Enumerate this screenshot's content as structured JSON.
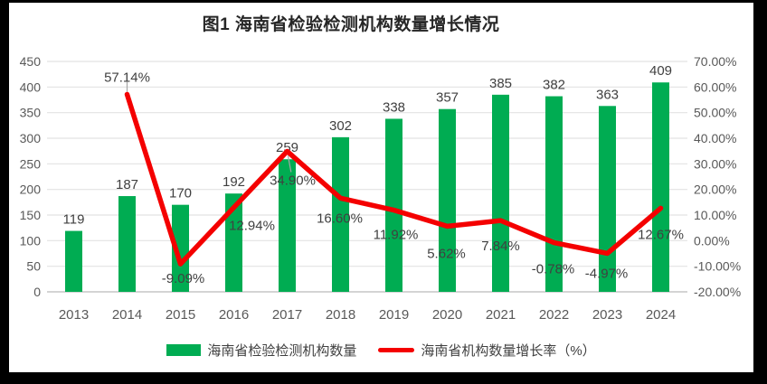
{
  "title": "图1 海南省检验检测机构数量增长情况",
  "colors": {
    "bar": "#00AC52",
    "line": "#F40000",
    "grid": "#E2E2E2",
    "axis_line": "#C6C6C6",
    "axis_text": "#595959",
    "label_text": "#404040",
    "leader": "#A6A6A6",
    "frame": "#000000",
    "background": "#FFFFFF"
  },
  "legend": {
    "items": [
      {
        "label": "海南省检验检测机构数量",
        "swatch": "bar"
      },
      {
        "label": "海南省机构数量增长率（%）",
        "swatch": "line"
      }
    ]
  },
  "chart_data": {
    "type": "bar",
    "combo": "bar+line",
    "title": "图1 海南省检验检测机构数量增长情况",
    "categories": [
      "2013",
      "2014",
      "2015",
      "2016",
      "2017",
      "2018",
      "2019",
      "2020",
      "2021",
      "2022",
      "2023",
      "2024"
    ],
    "series": [
      {
        "name": "海南省检验检测机构数量",
        "type": "bar",
        "axis": "left",
        "color": "#00AC52",
        "values": [
          119,
          187,
          170,
          192,
          259,
          302,
          338,
          357,
          385,
          382,
          363,
          409
        ],
        "labels": [
          "119",
          "187",
          "170",
          "192",
          "259",
          "302",
          "338",
          "357",
          "385",
          "382",
          "363",
          "409"
        ]
      },
      {
        "name": "海南省机构数量增长率（%）",
        "type": "line",
        "axis": "right",
        "color": "#F40000",
        "start_index": 1,
        "values": [
          57.14,
          -9.09,
          12.94,
          34.9,
          16.6,
          11.92,
          5.62,
          7.84,
          -0.78,
          -4.97,
          12.67
        ],
        "labels": [
          "57.14%",
          "-9.09%",
          "12.94%",
          "34.90%",
          "16.60%",
          "11.92%",
          "5.62%",
          "7.84%",
          "-0.78%",
          "-4.97%",
          "12.67%"
        ],
        "label_offsets": [
          [
            0,
            -19
          ],
          [
            3,
            16
          ],
          [
            20,
            20
          ],
          [
            6,
            32
          ],
          [
            -1,
            22
          ],
          [
            2,
            27
          ],
          [
            -1,
            30
          ],
          [
            0,
            28
          ],
          [
            -1,
            29
          ],
          [
            -1,
            22
          ],
          [
            0,
            29
          ]
        ],
        "leader_indexes": [
          0,
          3
        ]
      }
    ],
    "left_axis": {
      "min": 0,
      "max": 450,
      "step": 50,
      "ticks": [
        "0",
        "50",
        "100",
        "150",
        "200",
        "250",
        "300",
        "350",
        "400",
        "450"
      ]
    },
    "right_axis": {
      "min": -20,
      "max": 70,
      "step": 10,
      "ticks": [
        "-20.00%",
        "-10.00%",
        "0.00%",
        "10.00%",
        "20.00%",
        "30.00%",
        "40.00%",
        "50.00%",
        "60.00%",
        "70.00%"
      ]
    },
    "grid": true,
    "legend_position": "bottom"
  }
}
